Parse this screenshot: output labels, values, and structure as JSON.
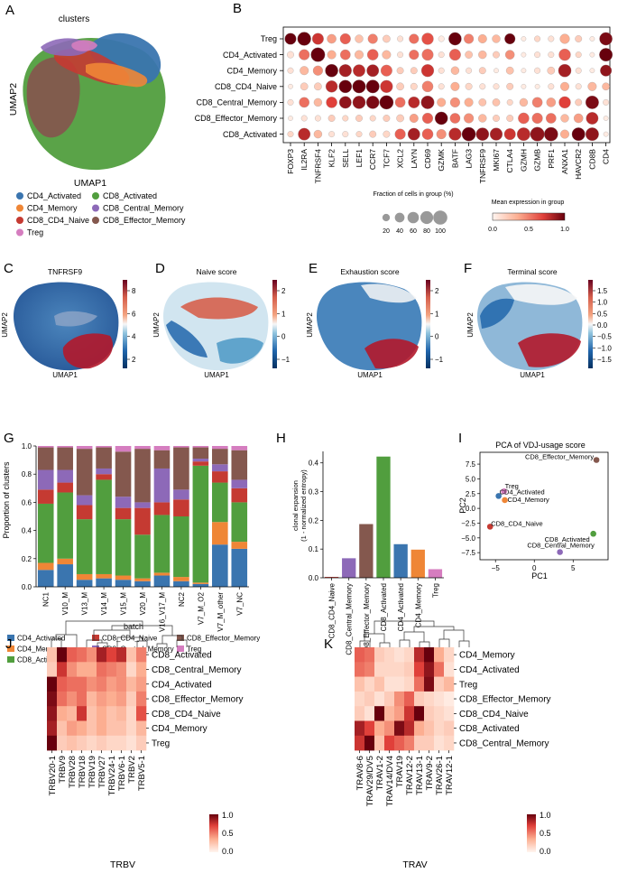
{
  "colors": {
    "CD4_Activated": "#3a75af",
    "CD4_Memory": "#ef8636",
    "CD8_CD4_Naive": "#c53a32",
    "CD8_Activated": "#519e3e",
    "CD8_Central_Memory": "#8d69b8",
    "CD8_Effector_Memory": "#84584e",
    "Treg": "#d57dbf"
  },
  "panels": {
    "A": {
      "letter": "A",
      "title": "clusters",
      "xlabel": "UMAP1",
      "ylabel": "UMAP2",
      "legend": [
        "CD4_Activated",
        "CD8_Activated",
        "CD4_Memory",
        "CD8_Central_Memory",
        "CD8_CD4_Naive",
        "CD8_Effector_Memory",
        "Treg"
      ]
    },
    "B": {
      "letter": "B",
      "rows": [
        "Treg",
        "CD4_Activated",
        "CD4_Memory",
        "CD8_CD4_Naive",
        "CD8_Central_Memory",
        "CD8_Effector_Memory",
        "CD8_Activated"
      ],
      "genes": [
        "FOXP3",
        "IL2RA",
        "TNFRSF4",
        "KLF2",
        "SELL",
        "LEF1",
        "CCR7",
        "TCF7",
        "XCL2",
        "LAYN",
        "CD69",
        "GZMK",
        "BATF",
        "LAG3",
        "TNFRSF9",
        "MKI67",
        "CTLA4",
        "GZMH",
        "GZMB",
        "PRF1",
        "ANXA1",
        "HAVCR2",
        "CD8B",
        "CD4"
      ],
      "size_legend_title": "Fraction of cells in group (%)",
      "size_legend_ticks": [
        "20",
        "40",
        "60",
        "80",
        "100"
      ],
      "color_legend_title": "Mean expression in group",
      "color_legend_ticks": [
        "0.0",
        "0.5",
        "1.0"
      ]
    },
    "C": {
      "letter": "C",
      "title": "TNFRSF9",
      "xlabel": "UMAP1",
      "ylabel": "UMAP2",
      "ticks": [
        "8",
        "6",
        "4",
        "2"
      ]
    },
    "D": {
      "letter": "D",
      "title": "Naive score",
      "xlabel": "UMAP1",
      "ylabel": "UMAP2",
      "ticks": [
        "2",
        "1",
        "0",
        "−1"
      ]
    },
    "E": {
      "letter": "E",
      "title": "Exhaustion score",
      "xlabel": "UMAP1",
      "ylabel": "UMAP2",
      "ticks": [
        "2",
        "1",
        "0",
        "−1"
      ]
    },
    "F": {
      "letter": "F",
      "title": "Terminal score",
      "xlabel": "UMAP1",
      "ylabel": "UMAP2",
      "ticks": [
        "1.5",
        "1.0",
        "0.5",
        "0.0",
        "−0.5",
        "−1.0",
        "−1.5"
      ]
    },
    "G": {
      "letter": "G",
      "xlabel": "batch",
      "ylabel": "Proportion of clusters",
      "yticks": [
        "0.0",
        "0.2",
        "0.4",
        "0.6",
        "0.8",
        "1.0"
      ],
      "legend": [
        "CD4_Activated",
        "CD8_CD4_Naive",
        "CD8_Effector_Memory",
        "CD4_Memory",
        "CD8_Central_Memory",
        "Treg",
        "CD8_Activated"
      ]
    },
    "H": {
      "letter": "H",
      "ylabel_line1": "clonal expansion",
      "ylabel_line2": "(1 - normalized entropy)"
    },
    "I": {
      "letter": "I",
      "title": "PCA of VDJ-usage score",
      "xlabel": "PC1",
      "ylabel": "PC2"
    },
    "J": {
      "letter": "J",
      "xlabel": "TRBV",
      "colorbar_ticks": [
        "1.0",
        "0.5",
        "0.0"
      ],
      "rows": [
        "CD8_Activated",
        "CD8_Central_Memory",
        "CD4_Activated",
        "CD8_Effector_Memory",
        "CD8_CD4_Naive",
        "CD4_Memory",
        "Treg"
      ],
      "cols": [
        "TRBV20-1",
        "TRBV9",
        "TRBV28",
        "TRBV18",
        "TRBV19",
        "TRBV27",
        "TRBV24-1",
        "TRBV6-1",
        "TRBV2",
        "TRBV5-1"
      ]
    },
    "K": {
      "letter": "K",
      "xlabel": "TRAV",
      "colorbar_ticks": [
        "1.0",
        "0.5",
        "0.0"
      ],
      "rows": [
        "CD4_Memory",
        "CD4_Activated",
        "Treg",
        "CD8_Effector_Memory",
        "CD8_CD4_Naive",
        "CD8_Activated",
        "CD8_Central_Memory"
      ],
      "cols": [
        "TRAV8-6",
        "TRAV29/DV5",
        "TRAV1-2",
        "TRAV14/DV4",
        "TRAV19",
        "TRAV12-2",
        "TRAV13-1",
        "TRAV9-2",
        "TRAV26-1",
        "TRAV12-1"
      ]
    }
  },
  "chart_data": [
    {
      "panel": "B",
      "type": "dotplot",
      "x_genes": [
        "FOXP3",
        "IL2RA",
        "TNFRSF4",
        "KLF2",
        "SELL",
        "LEF1",
        "CCR7",
        "TCF7",
        "XCL2",
        "LAYN",
        "CD69",
        "GZMK",
        "BATF",
        "LAG3",
        "TNFRSF9",
        "MKI67",
        "CTLA4",
        "GZMH",
        "GZMB",
        "PRF1",
        "ANXA1",
        "HAVCR2",
        "CD8B",
        "CD4"
      ],
      "y_groups": [
        "Treg",
        "CD4_Activated",
        "CD4_Memory",
        "CD8_CD4_Naive",
        "CD8_Central_Memory",
        "CD8_Effector_Memory",
        "CD8_Activated"
      ],
      "mean_expression": [
        [
          1.0,
          1.0,
          0.75,
          0.4,
          0.6,
          0.25,
          0.5,
          0.2,
          0.1,
          0.55,
          0.65,
          0.05,
          1.0,
          0.5,
          0.35,
          0.3,
          1.0,
          0.05,
          0.15,
          0.1,
          0.35,
          0.2,
          0.05,
          0.95
        ],
        [
          0.1,
          0.55,
          1.0,
          0.35,
          0.55,
          0.3,
          0.6,
          0.3,
          0.1,
          0.55,
          0.55,
          0.1,
          0.6,
          0.25,
          0.3,
          0.2,
          0.45,
          0.05,
          0.1,
          0.1,
          0.6,
          0.15,
          0.05,
          1.0
        ],
        [
          0.1,
          0.3,
          0.45,
          1.0,
          0.85,
          0.8,
          0.85,
          0.6,
          0.2,
          0.2,
          0.75,
          0.1,
          0.3,
          0.1,
          0.2,
          0.05,
          0.25,
          0.05,
          0.1,
          0.2,
          0.85,
          0.1,
          0.05,
          0.9
        ],
        [
          0.05,
          0.2,
          0.2,
          0.8,
          1.0,
          1.0,
          1.0,
          0.75,
          0.2,
          0.15,
          0.5,
          0.1,
          0.35,
          0.15,
          0.1,
          0.1,
          0.2,
          0.05,
          0.05,
          0.1,
          0.35,
          0.1,
          0.3,
          0.3
        ],
        [
          0.1,
          0.55,
          0.3,
          0.7,
          0.9,
          0.9,
          0.95,
          1.0,
          0.55,
          0.8,
          0.9,
          0.35,
          0.45,
          0.35,
          0.25,
          0.25,
          0.15,
          0.3,
          0.5,
          0.4,
          0.7,
          0.2,
          0.95,
          0.1
        ],
        [
          0.05,
          0.1,
          0.1,
          0.2,
          0.15,
          0.2,
          0.15,
          0.2,
          0.2,
          0.4,
          0.6,
          1.0,
          0.55,
          0.45,
          0.3,
          0.2,
          0.2,
          0.6,
          0.55,
          0.55,
          0.3,
          0.4,
          0.8,
          0.05
        ],
        [
          0.15,
          0.8,
          0.3,
          0.1,
          0.1,
          0.15,
          0.2,
          0.15,
          0.6,
          0.85,
          0.6,
          0.45,
          0.8,
          1.0,
          0.9,
          0.85,
          0.75,
          0.8,
          0.9,
          0.95,
          0.35,
          1.0,
          0.9,
          0.05
        ]
      ],
      "fraction_pct": [
        [
          60,
          90,
          60,
          35,
          50,
          25,
          40,
          20,
          10,
          40,
          65,
          10,
          80,
          40,
          30,
          25,
          50,
          5,
          10,
          10,
          40,
          15,
          5,
          80
        ],
        [
          15,
          50,
          100,
          30,
          45,
          30,
          55,
          30,
          10,
          40,
          60,
          10,
          60,
          20,
          25,
          15,
          35,
          5,
          10,
          10,
          65,
          10,
          5,
          85
        ],
        [
          10,
          30,
          40,
          80,
          75,
          70,
          70,
          60,
          15,
          15,
          75,
          10,
          25,
          10,
          15,
          5,
          20,
          5,
          10,
          20,
          80,
          10,
          5,
          60
        ],
        [
          5,
          20,
          20,
          65,
          80,
          85,
          85,
          75,
          20,
          15,
          55,
          10,
          30,
          15,
          10,
          10,
          15,
          5,
          5,
          10,
          30,
          10,
          30,
          20
        ],
        [
          10,
          45,
          25,
          55,
          70,
          80,
          80,
          95,
          45,
          60,
          85,
          30,
          40,
          30,
          20,
          20,
          10,
          25,
          45,
          35,
          65,
          15,
          85,
          10
        ],
        [
          5,
          10,
          10,
          15,
          10,
          15,
          10,
          15,
          20,
          30,
          50,
          80,
          45,
          40,
          25,
          15,
          15,
          55,
          50,
          45,
          25,
          35,
          70,
          5
        ],
        [
          10,
          70,
          25,
          10,
          10,
          10,
          15,
          15,
          50,
          70,
          55,
          40,
          75,
          95,
          80,
          75,
          60,
          85,
          100,
          95,
          30,
          85,
          85,
          5
        ]
      ]
    },
    {
      "panel": "G",
      "type": "stacked-bar",
      "ylim": [
        0,
        1
      ],
      "xlabel": "batch",
      "ylabel": "Proportion of clusters",
      "categories": [
        "NC1",
        "V10_M",
        "V13_M",
        "V14_M",
        "V15_M",
        "V20_M",
        "V16_V17_M",
        "NC2",
        "V7_M_O2",
        "V7_M_other",
        "V7_NC"
      ],
      "series": [
        {
          "name": "CD4_Activated",
          "values": [
            0.12,
            0.16,
            0.05,
            0.06,
            0.05,
            0.04,
            0.08,
            0.04,
            0.02,
            0.3,
            0.27
          ]
        },
        {
          "name": "CD4_Memory",
          "values": [
            0.05,
            0.04,
            0.04,
            0.03,
            0.03,
            0.02,
            0.02,
            0.03,
            0.01,
            0.16,
            0.05
          ]
        },
        {
          "name": "CD8_Activated",
          "values": [
            0.42,
            0.47,
            0.39,
            0.67,
            0.4,
            0.31,
            0.41,
            0.43,
            0.83,
            0.28,
            0.28
          ]
        },
        {
          "name": "CD8_CD4_Naive",
          "values": [
            0.1,
            0.07,
            0.1,
            0.04,
            0.08,
            0.19,
            0.09,
            0.12,
            0.03,
            0.08,
            0.1
          ]
        },
        {
          "name": "CD8_Central_Memory",
          "values": [
            0.14,
            0.09,
            0.07,
            0.04,
            0.08,
            0.04,
            0.24,
            0.07,
            0.02,
            0.05,
            0.06
          ]
        },
        {
          "name": "CD8_Effector_Memory",
          "values": [
            0.16,
            0.16,
            0.33,
            0.15,
            0.32,
            0.38,
            0.13,
            0.3,
            0.08,
            0.11,
            0.21
          ]
        },
        {
          "name": "Treg",
          "values": [
            0.01,
            0.01,
            0.02,
            0.01,
            0.04,
            0.02,
            0.03,
            0.01,
            0.01,
            0.02,
            0.03
          ]
        }
      ]
    },
    {
      "panel": "H",
      "type": "bar",
      "ylim": [
        0,
        0.44
      ],
      "yticks": [
        0.0,
        0.1,
        0.2,
        0.3,
        0.4
      ],
      "ylabel": "clonal expansion (1 - normalized entropy)",
      "categories": [
        "CD8_CD4_Naive",
        "CD8_Central_Memory",
        "CD8_Effector_Memory",
        "CD8_Activated",
        "CD4_Activated",
        "CD4_Memory",
        "Treg"
      ],
      "values": [
        0.003,
        0.068,
        0.187,
        0.422,
        0.117,
        0.098,
        0.03
      ]
    },
    {
      "panel": "I",
      "type": "scatter",
      "title": "PCA of VDJ-usage score",
      "xlabel": "PC1",
      "ylabel": "PC2",
      "xlim": [
        -7,
        9.5
      ],
      "ylim": [
        -8.7,
        9.5
      ],
      "xticks": [
        -5,
        0,
        5
      ],
      "yticks": [
        -7.5,
        -5.0,
        -2.5,
        0.0,
        2.5,
        5.0,
        7.5
      ],
      "points": [
        {
          "label": "CD8_Effector_Memory",
          "x": 8.0,
          "y": 8.2
        },
        {
          "label": "Treg",
          "x": -3.9,
          "y": 2.9
        },
        {
          "label": "CD4_Activated",
          "x": -4.6,
          "y": 2.1
        },
        {
          "label": "CD4_Memory",
          "x": -3.8,
          "y": 1.4
        },
        {
          "label": "CD8_CD4_Naive",
          "x": -5.7,
          "y": -3.1
        },
        {
          "label": "CD8_Activated",
          "x": 7.6,
          "y": -4.3
        },
        {
          "label": "CD8_Central_Memory",
          "x": 3.3,
          "y": -7.4
        }
      ]
    },
    {
      "panel": "J",
      "type": "heatmap",
      "xlabel": "TRBV",
      "colorbar_range": [
        0,
        1
      ],
      "rows": [
        "CD8_Activated",
        "CD8_Central_Memory",
        "CD4_Activated",
        "CD8_Effector_Memory",
        "CD8_CD4_Naive",
        "CD4_Memory",
        "Treg"
      ],
      "cols": [
        "TRBV20-1",
        "TRBV9",
        "TRBV28",
        "TRBV18",
        "TRBV19",
        "TRBV27",
        "TRBV24-1",
        "TRBV6-1",
        "TRBV2",
        "TRBV5-1"
      ],
      "values": [
        [
          0.25,
          1.0,
          0.6,
          0.55,
          0.45,
          0.85,
          0.7,
          0.8,
          0.25,
          0.5
        ],
        [
          0.2,
          0.75,
          0.45,
          0.35,
          0.35,
          0.55,
          0.5,
          0.45,
          0.15,
          0.35
        ],
        [
          1.0,
          0.6,
          0.55,
          0.55,
          0.45,
          0.5,
          0.4,
          0.45,
          0.3,
          0.4
        ],
        [
          0.95,
          0.55,
          0.45,
          0.55,
          0.3,
          0.4,
          0.35,
          0.4,
          0.2,
          0.5
        ],
        [
          0.9,
          0.35,
          0.3,
          0.75,
          0.25,
          0.35,
          0.25,
          0.3,
          0.15,
          0.65
        ],
        [
          0.85,
          0.25,
          0.4,
          0.35,
          0.25,
          0.35,
          0.25,
          0.25,
          0.15,
          0.3
        ],
        [
          1.0,
          0.2,
          0.25,
          0.2,
          0.15,
          0.2,
          0.15,
          0.15,
          0.1,
          0.2
        ]
      ]
    },
    {
      "panel": "K",
      "type": "heatmap",
      "xlabel": "TRAV",
      "colorbar_range": [
        0,
        1
      ],
      "rows": [
        "CD4_Memory",
        "CD4_Activated",
        "Treg",
        "CD8_Effector_Memory",
        "CD8_CD4_Naive",
        "CD8_Activated",
        "CD8_Central_Memory"
      ],
      "cols": [
        "TRAV8-6",
        "TRAV29/DV5",
        "TRAV1-2",
        "TRAV14/DV4",
        "TRAV19",
        "TRAV12-2",
        "TRAV13-1",
        "TRAV9-2",
        "TRAV26-1",
        "TRAV12-1"
      ],
      "values": [
        [
          0.6,
          0.55,
          0.2,
          0.15,
          0.1,
          0.15,
          0.8,
          1.0,
          0.35,
          0.15
        ],
        [
          0.55,
          0.5,
          0.15,
          0.15,
          0.15,
          0.2,
          0.7,
          0.9,
          0.55,
          0.1
        ],
        [
          0.25,
          0.15,
          0.25,
          0.1,
          0.1,
          0.15,
          0.55,
          0.95,
          0.2,
          0.3
        ],
        [
          0.15,
          0.2,
          0.1,
          0.2,
          0.45,
          0.6,
          0.2,
          0.15,
          0.1,
          0.05
        ],
        [
          0.2,
          0.1,
          1.0,
          0.3,
          0.4,
          0.75,
          1.0,
          0.2,
          0.15,
          0.1
        ],
        [
          0.85,
          0.7,
          0.35,
          0.45,
          0.95,
          0.8,
          0.35,
          0.25,
          0.15,
          0.2
        ],
        [
          0.75,
          1.0,
          0.25,
          0.7,
          0.6,
          0.5,
          0.2,
          0.2,
          0.1,
          0.15
        ]
      ]
    }
  ]
}
